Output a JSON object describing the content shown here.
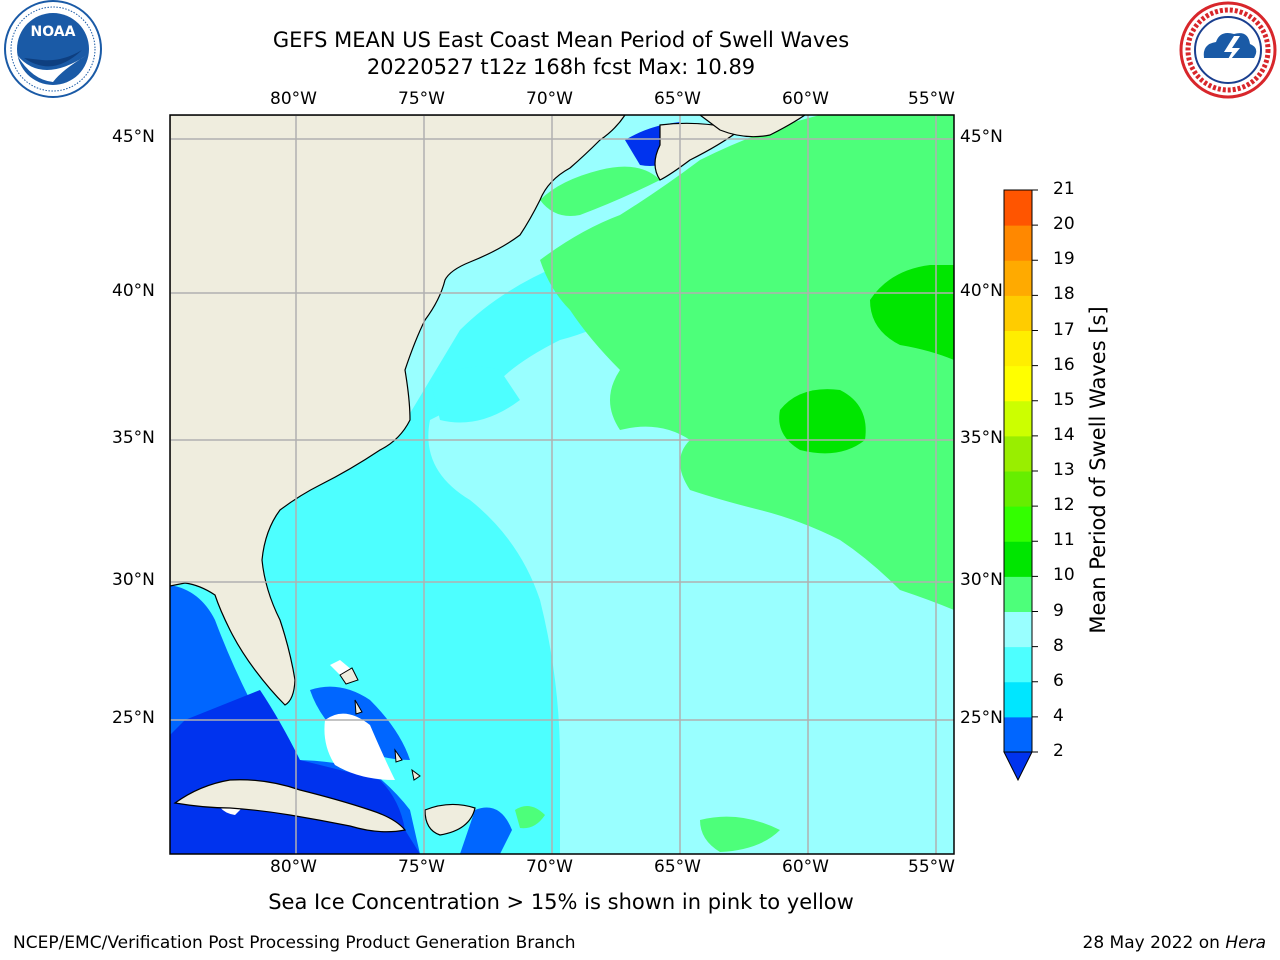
{
  "title": {
    "line1": "GEFS MEAN US East Coast Mean Period of Swell Waves",
    "line2": "20220527 t12z 168h fcst   Max: 10.89"
  },
  "logos": {
    "left": {
      "icon": "noaa-logo",
      "text": "NOAA",
      "ring_text": "NATIONAL OCEANIC AND ATMOSPHERIC ADMINISTRATION · U.S. DEPARTMENT OF COMMERCE",
      "color": "#1a5aa6"
    },
    "right": {
      "icon": "nws-logo",
      "ring_text": "NATIONAL WEATHER SERVICE",
      "color": "#d8262b"
    }
  },
  "map": {
    "lon_ticks_top": [
      "80°W",
      "75°W",
      "70°W",
      "65°W",
      "60°W",
      "55°W"
    ],
    "lon_ticks_bottom": [
      "80°W",
      "75°W",
      "70°W",
      "65°W",
      "60°W",
      "55°W"
    ],
    "lat_ticks_left": [
      "45°N",
      "40°N",
      "35°N",
      "30°N",
      "25°N"
    ],
    "lat_ticks_right": [
      "45°N",
      "40°N",
      "35°N",
      "30°N",
      "25°N"
    ],
    "extent": {
      "lon": [
        -85,
        -54.5
      ],
      "lat": [
        20.5,
        46.3
      ]
    },
    "land_color": "#efedde",
    "gridlines": true
  },
  "colorbar": {
    "title": "Mean Period of Swell Waves [s]",
    "labels": [
      "2",
      "4",
      "6",
      "8",
      "9",
      "10",
      "11",
      "12",
      "13",
      "14",
      "15",
      "16",
      "17",
      "18",
      "19",
      "20",
      "21"
    ],
    "colors": [
      "#0066ff",
      "#00e6ff",
      "#4dffff",
      "#99ffff",
      "#4dff7a",
      "#00e600",
      "#33ff00",
      "#66ee00",
      "#99ee00",
      "#ccff00",
      "#ffff00",
      "#ffee00",
      "#ffcc00",
      "#ffaa00",
      "#ff8800",
      "#ff5500",
      "#ff1a00"
    ],
    "under_color": "#0033ee"
  },
  "caption": "Sea Ice Concentration > 15% is shown in pink to yellow",
  "footer": {
    "left": "NCEP/EMC/Verification Post Processing Product Generation Branch",
    "right_prefix": "28 May 2022 on ",
    "right_italic": "Hera"
  }
}
